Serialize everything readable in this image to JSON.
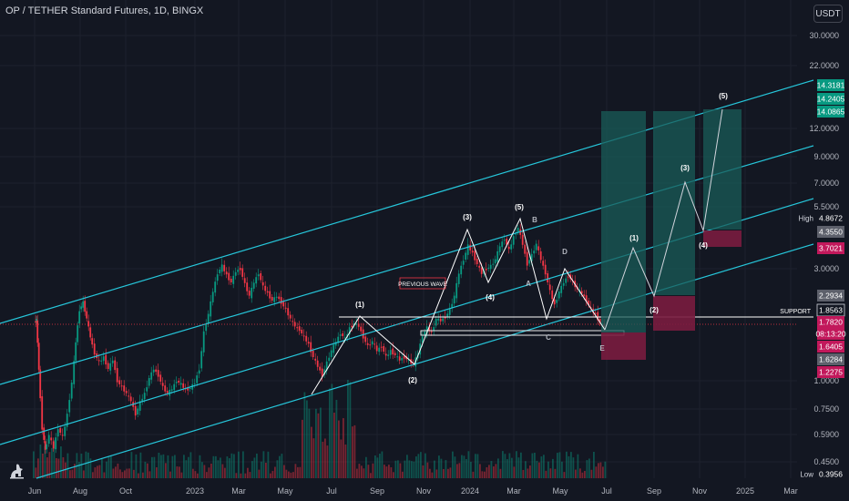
{
  "header": {
    "title": "OP / TETHER Standard Futures, 1D, BINGX",
    "currency_button": "USDT"
  },
  "chart_data": {
    "type": "candlestick",
    "title": "OP / TETHER Standard Futures, 1D, BINGX",
    "y_scale": "log",
    "x_tick_labels": [
      "Jun",
      "Aug",
      "Oct",
      "2023",
      "Mar",
      "May",
      "Jul",
      "Sep",
      "Nov",
      "2024",
      "Mar",
      "May",
      "Jul",
      "Sep",
      "Nov",
      "2025",
      "Mar"
    ],
    "y_tick_labels": [
      "30.0000",
      "22.0000",
      "12.0000",
      "9.0000",
      "7.0000",
      "5.5000",
      "3.0000",
      "1.0000",
      "0.7500",
      "0.5900",
      "0.4500"
    ],
    "price_badges": [
      {
        "text": "14.3181",
        "color": "#089981"
      },
      {
        "text": "14.2405",
        "color": "#089981"
      },
      {
        "text": "14.0865",
        "color": "#089981"
      },
      {
        "text": "4.8672",
        "color": "#131722",
        "label": "High"
      },
      {
        "text": "4.3550",
        "color": "#5d606b"
      },
      {
        "text": "3.7021",
        "color": "#c2185b"
      },
      {
        "text": "2.2934",
        "color": "#5d606b"
      },
      {
        "text": "1.8563",
        "color": "#131722",
        "border": "#d1d4dc"
      },
      {
        "text": "1.7820",
        "color": "#c2185b"
      },
      {
        "text": "08:13:20",
        "color": "#c2185b"
      },
      {
        "text": "1.6405",
        "color": "#c2185b"
      },
      {
        "text": "1.6284",
        "color": "#5d606b"
      },
      {
        "text": "1.2275",
        "color": "#c2185b"
      },
      {
        "text": "0.3956",
        "color": "#131722",
        "label": "Low"
      }
    ],
    "wave_labels": {
      "w1": "(1)",
      "w2": "(2)",
      "w3": "(3)",
      "w4": "(4)",
      "w5": "(5)",
      "A": "A",
      "B": "B",
      "C": "C",
      "D": "D",
      "E": "E",
      "p1": "(1)",
      "p2": "(2)",
      "p3": "(3)",
      "p4": "(4)",
      "p5": "(5)"
    },
    "annotations": {
      "previous_wave": "PREVIOUS WAVE",
      "support": "SUPPORT"
    },
    "colors": {
      "channel": "#26c6da",
      "up": "#089981",
      "down": "#f23645",
      "target": "#1a5c58",
      "stop": "#7a1c3f"
    }
  }
}
